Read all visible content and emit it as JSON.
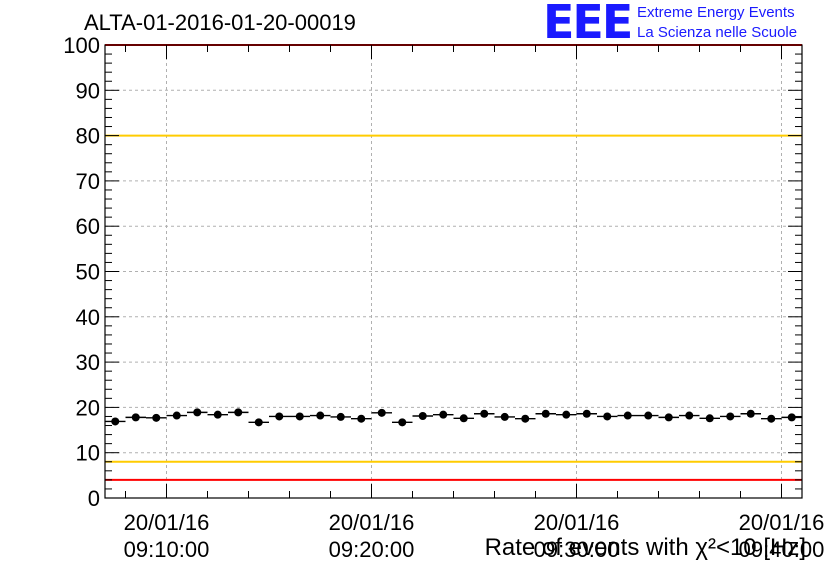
{
  "header": {
    "title": "ALTA-01-2016-01-20-00019"
  },
  "logo": {
    "mark": "EEE",
    "line1": "Extreme Energy Events",
    "line2": "La Scienza nelle Scuole",
    "color": "#1a1aff"
  },
  "chart_data": {
    "type": "scatter",
    "title": "ALTA-01-2016-01-20-00019",
    "xlabel": "Rate of events with χ²<10 [Hz]",
    "ylabel": "",
    "ylim": [
      0,
      100
    ],
    "y_ticks": [
      0,
      10,
      20,
      30,
      40,
      50,
      60,
      70,
      80,
      90,
      100
    ],
    "x_range_minutes": [
      0,
      34
    ],
    "x_ticks": [
      {
        "minute": 3,
        "date": "20/01/16",
        "time": "09:10:00"
      },
      {
        "minute": 13,
        "date": "20/01/16",
        "time": "09:20:00"
      },
      {
        "minute": 23,
        "date": "20/01/16",
        "time": "09:30:00"
      },
      {
        "minute": 33,
        "date": "20/01/16",
        "time": "09:40:00"
      }
    ],
    "grid": true,
    "reference_lines": [
      {
        "y": 100,
        "color": "#ff0000"
      },
      {
        "y": 80,
        "color": "#ffcc00"
      },
      {
        "y": 8,
        "color": "#ffcc00"
      },
      {
        "y": 4,
        "color": "#ff0000"
      }
    ],
    "series": [
      {
        "marker_color": "#000000",
        "x": [
          0.5,
          1.5,
          2.5,
          3.5,
          4.5,
          5.5,
          6.5,
          7.5,
          8.5,
          9.5,
          10.5,
          11.5,
          12.5,
          13.5,
          14.5,
          15.5,
          16.5,
          17.5,
          18.5,
          19.5,
          20.5,
          21.5,
          22.5,
          23.5,
          24.5,
          25.5,
          26.5,
          27.5,
          28.5,
          29.5,
          30.5,
          31.5,
          32.5,
          33.5
        ],
        "values": [
          16.9,
          17.8,
          17.7,
          18.2,
          18.9,
          18.4,
          18.9,
          16.7,
          18.0,
          18.0,
          18.2,
          17.9,
          17.5,
          18.8,
          16.7,
          18.1,
          18.4,
          17.6,
          18.6,
          17.9,
          17.5,
          18.6,
          18.4,
          18.6,
          18.0,
          18.2,
          18.2,
          17.8,
          18.2,
          17.6,
          18.0,
          18.6,
          17.5,
          17.8
        ]
      }
    ]
  }
}
